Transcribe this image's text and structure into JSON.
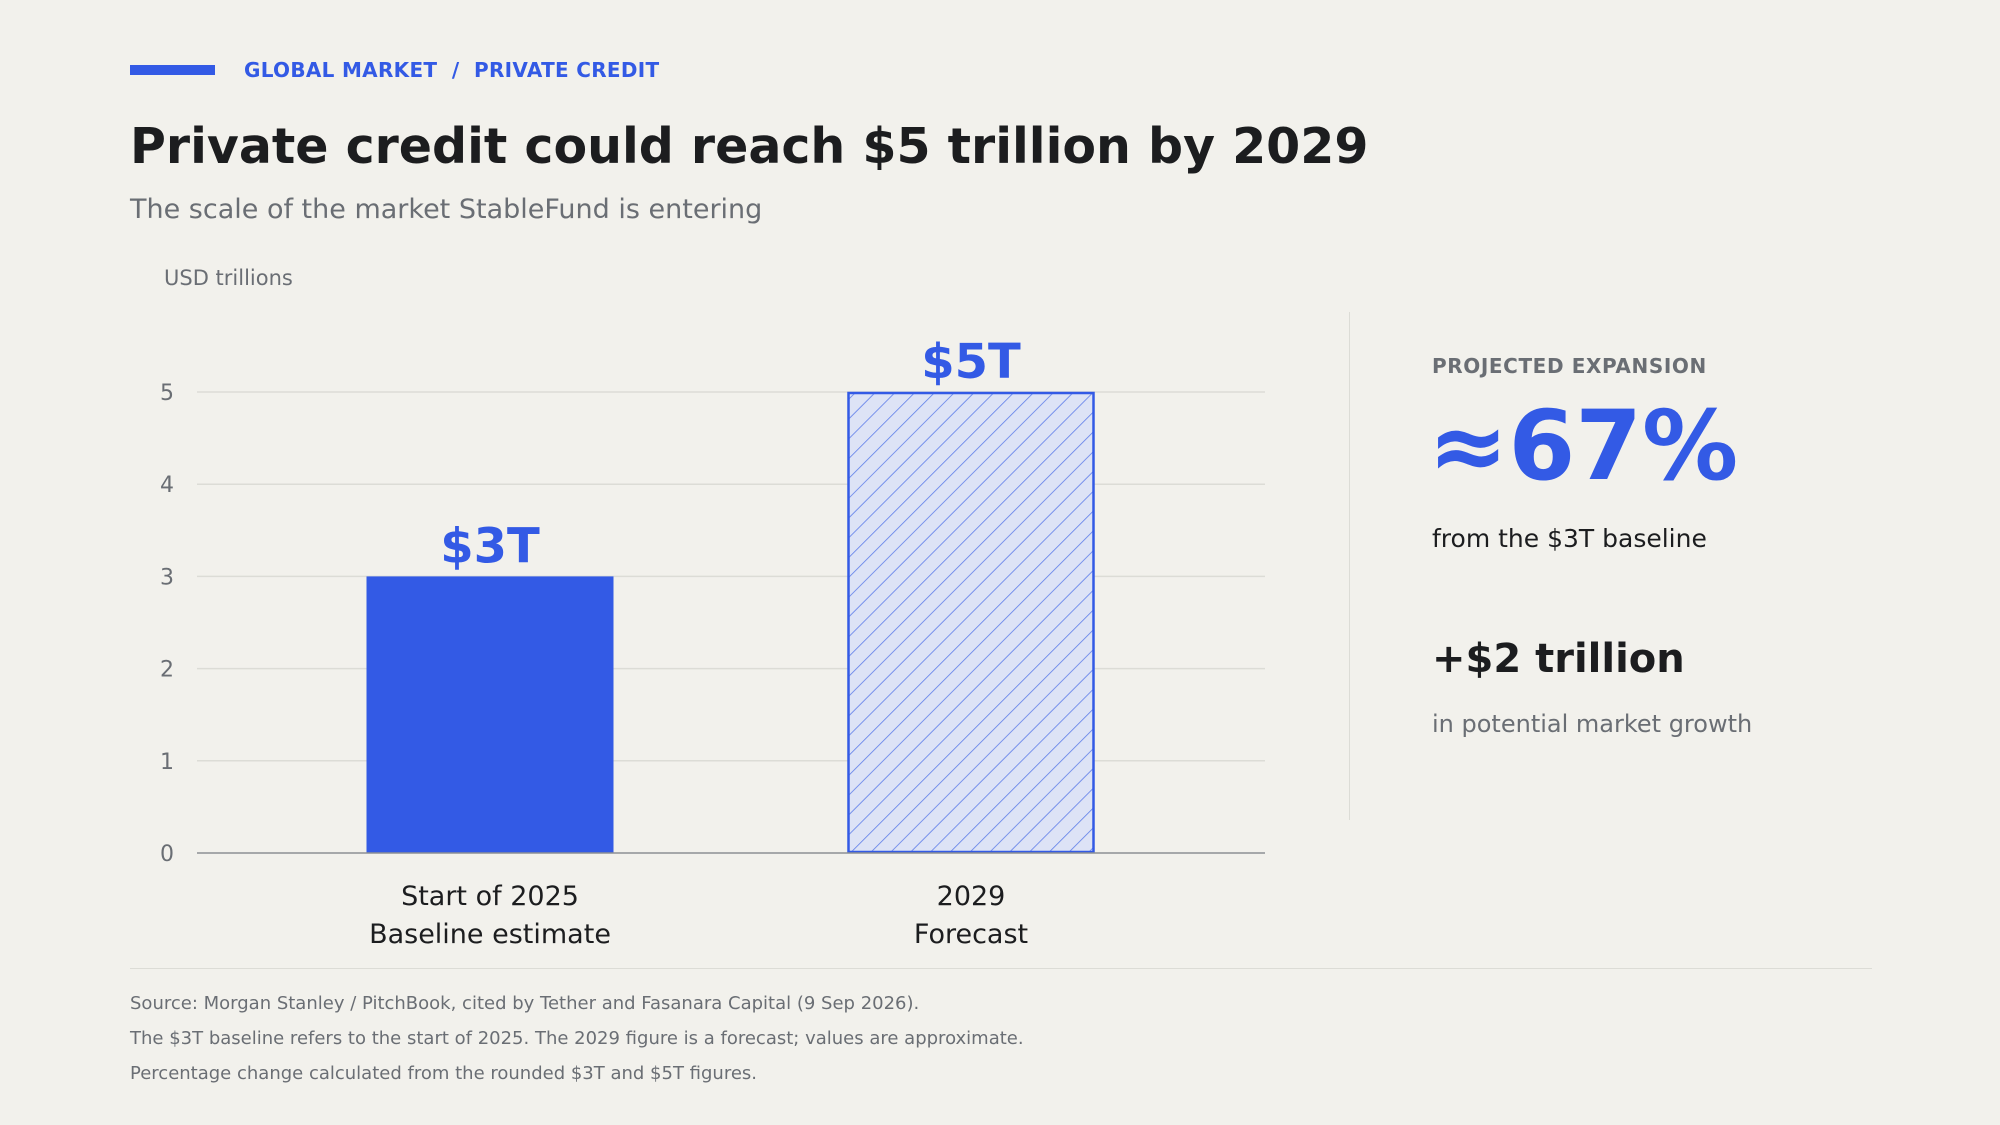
{
  "header": {
    "eyebrow": "GLOBAL MARKET  /  PRIVATE CREDIT",
    "title": "Private credit could reach $5 trillion by 2029",
    "subtitle": "The scale of the market StableFund is entering"
  },
  "chart_data": {
    "type": "bar",
    "ylabel": "USD trillions",
    "ylim": [
      0,
      5
    ],
    "yticks": [
      0,
      1,
      2,
      3,
      4,
      5
    ],
    "grid": true,
    "categories": [
      [
        "Start of 2025",
        "Baseline estimate"
      ],
      [
        "2029",
        "Forecast"
      ]
    ],
    "values": [
      3,
      5
    ],
    "data_labels": [
      "$3T",
      "$5T"
    ],
    "bar_styles": [
      "solid",
      "hatched"
    ]
  },
  "panel": {
    "kicker": "PROJECTED EXPANSION",
    "big_value": "≈67%",
    "big_caption": "from the $3T baseline",
    "delta_value": "+$2 trillion",
    "delta_caption": "in potential market growth"
  },
  "footer": {
    "notes": [
      "Source: Morgan Stanley / PitchBook, cited by Tether and Fasanara Capital (9 Sep 2026).",
      "The $3T baseline refers to the start of 2025. The 2029 figure is a forecast; values are approximate.",
      "Percentage change calculated from the rounded $3T and $5T figures."
    ]
  },
  "colors": {
    "accent": "#335ae5",
    "forecast_fill": "#dde3f6",
    "text": "#1c1d1f",
    "muted": "#6a6e74",
    "background": "#f2f1ec",
    "grid": "#dcdcd6",
    "axis": "#8c8f93"
  }
}
